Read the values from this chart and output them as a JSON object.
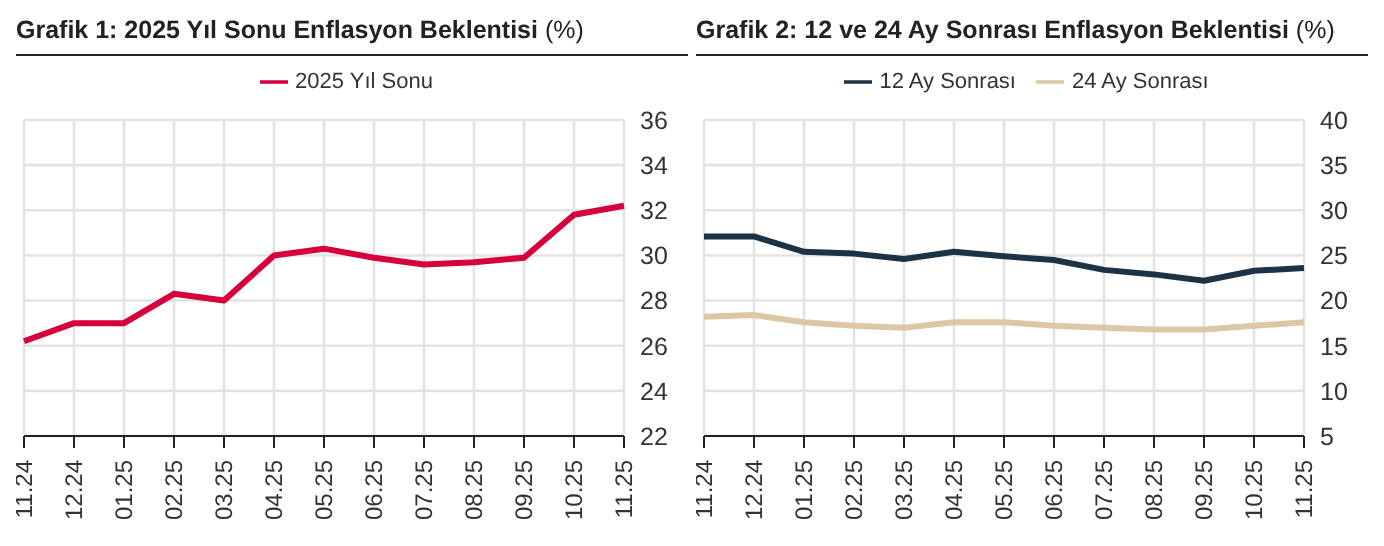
{
  "chart_data": [
    {
      "type": "line",
      "title": "Grafik 1: 2025 Yıl Sonu Enflasyon Beklentisi",
      "ylabel": "(%)",
      "categories": [
        "11.24",
        "12.24",
        "01.25",
        "02.25",
        "03.25",
        "04.25",
        "05.25",
        "06.25",
        "07.25",
        "08.25",
        "09.25",
        "10.25",
        "11.25"
      ],
      "series": [
        {
          "name": "2025 Yıl Sonu",
          "color": "#d6003c",
          "values": [
            26.2,
            27.0,
            27.0,
            28.3,
            28.0,
            30.0,
            30.3,
            29.9,
            29.6,
            29.7,
            29.9,
            31.8,
            32.2
          ]
        }
      ],
      "ylim": [
        22,
        36
      ],
      "yticks": [
        22,
        24,
        26,
        28,
        30,
        32,
        34,
        36
      ],
      "grid": true,
      "legend": "top"
    },
    {
      "type": "line",
      "title": "Grafik 2: 12 ve 24 Ay Sonrası Enflasyon Beklentisi",
      "ylabel": "(%)",
      "categories": [
        "11.24",
        "12.24",
        "01.25",
        "02.25",
        "03.25",
        "04.25",
        "05.25",
        "06.25",
        "07.25",
        "08.25",
        "09.25",
        "10.25",
        "11.25"
      ],
      "series": [
        {
          "name": "12 Ay Sonrası",
          "color": "#1e3246",
          "values": [
            27.1,
            27.1,
            25.4,
            25.2,
            24.6,
            25.4,
            24.9,
            24.5,
            23.4,
            22.9,
            22.2,
            23.3,
            23.6
          ]
        },
        {
          "name": "24 Ay Sonrası",
          "color": "#dcc8a5",
          "values": [
            18.2,
            18.4,
            17.6,
            17.2,
            17.0,
            17.6,
            17.6,
            17.2,
            17.0,
            16.8,
            16.8,
            17.2,
            17.6
          ]
        }
      ],
      "ylim": [
        5,
        40
      ],
      "yticks": [
        5,
        10,
        15,
        20,
        25,
        30,
        35,
        40
      ],
      "grid": true,
      "legend": "top"
    }
  ]
}
